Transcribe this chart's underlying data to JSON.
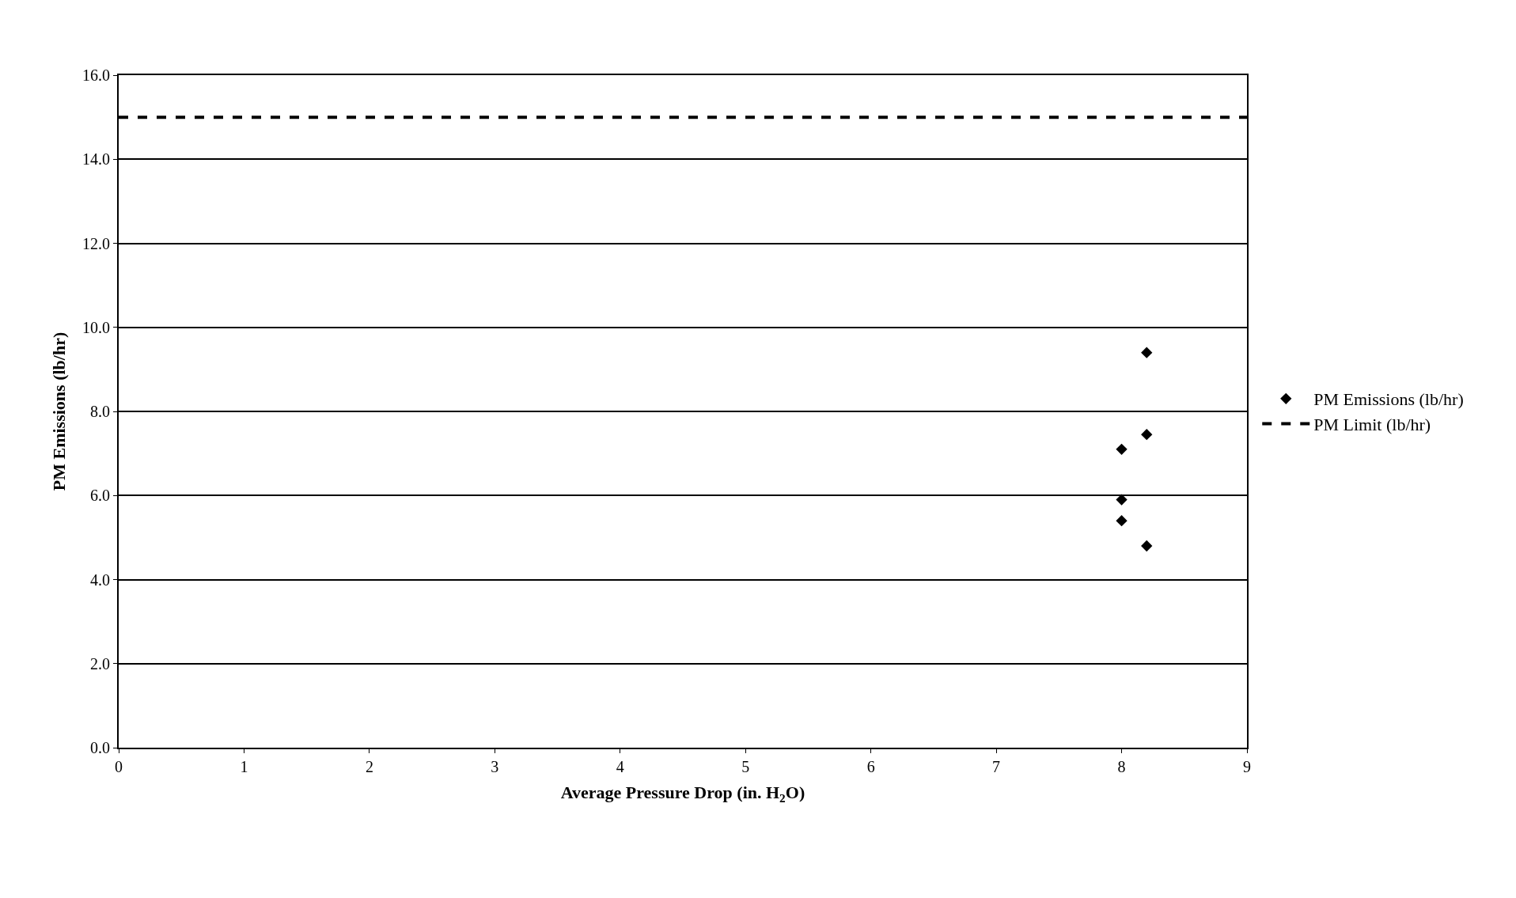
{
  "chart_data": {
    "type": "scatter",
    "xlabel": "Average Pressure Drop (in. H$_{2}$O)",
    "ylabel": "PM Emissions (lb/hr)",
    "xlim": [
      0,
      9
    ],
    "xticks": [
      0,
      1,
      2,
      3,
      4,
      5,
      6,
      7,
      8,
      9
    ],
    "ylim": [
      0,
      16
    ],
    "yticks": [
      {
        "value": 0,
        "label": "0.0"
      },
      {
        "value": 2,
        "label": "2.0"
      },
      {
        "value": 4,
        "label": "4.0"
      },
      {
        "value": 6,
        "label": "6.0"
      },
      {
        "value": 8,
        "label": "8.0"
      },
      {
        "value": 10,
        "label": "10.0"
      },
      {
        "value": 12,
        "label": "12.0"
      },
      {
        "value": 14,
        "label": "14.0"
      },
      {
        "value": 16,
        "label": "16.0"
      }
    ],
    "grid": "y",
    "legend": "right",
    "series": [
      {
        "name": "PM Emissions (lb/hr)",
        "color": "#000000",
        "marker": "diamond",
        "x": [
          8.2,
          8.2,
          8.0,
          8.0,
          8.0,
          8.2
        ],
        "values": [
          9.4,
          7.45,
          7.1,
          5.9,
          5.4,
          4.8
        ]
      },
      {
        "name": "PM Limit (lb/hr)",
        "type": "line",
        "color": "#000000",
        "marker": "none",
        "line_style": "dashed",
        "x": [
          0,
          9
        ],
        "values": [
          15,
          15
        ]
      }
    ]
  }
}
